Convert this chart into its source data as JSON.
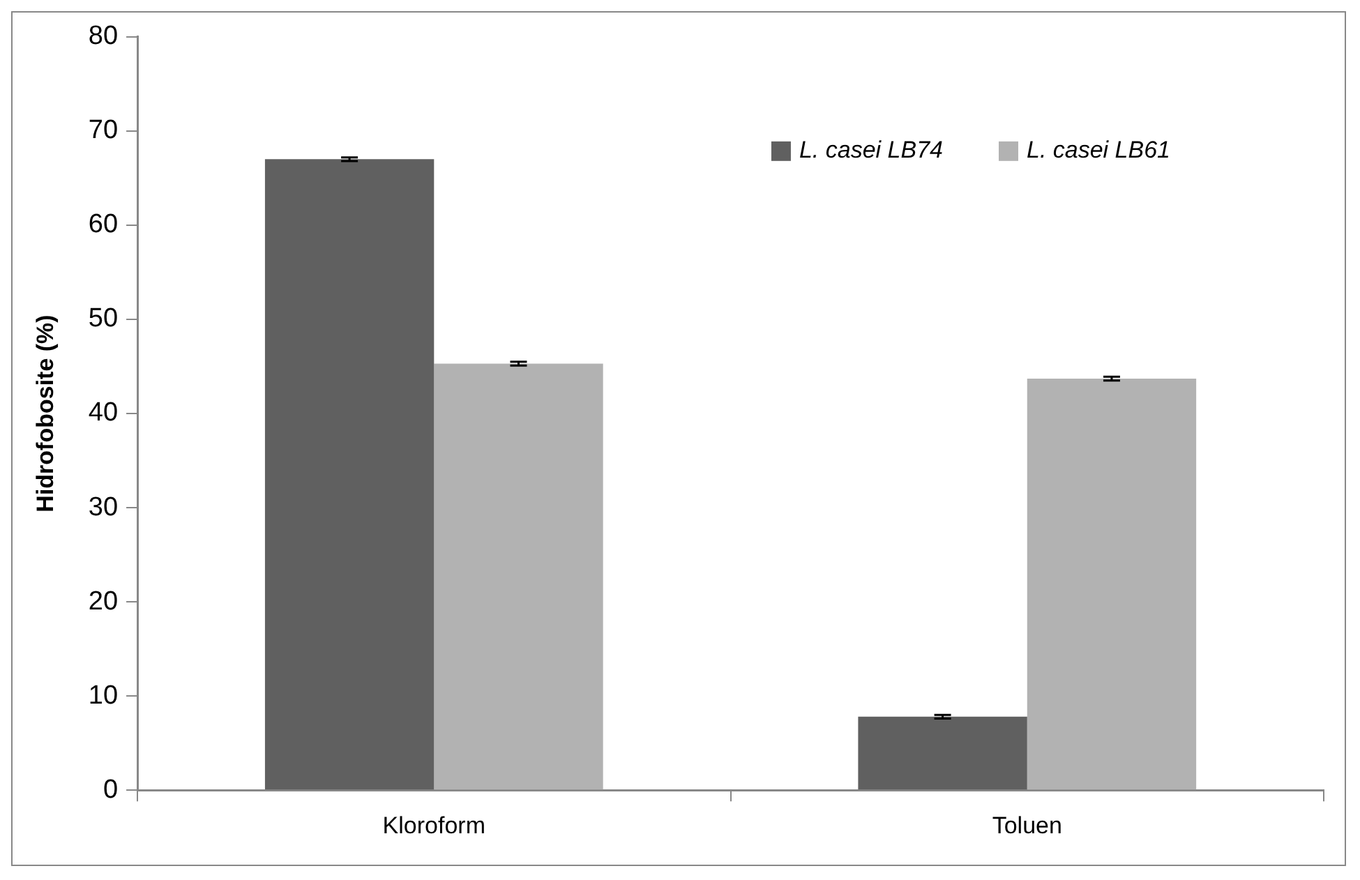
{
  "chart_data": {
    "type": "bar",
    "ylabel": "Hidrofobosite (%)",
    "categories": [
      "Kloroform",
      "Toluen"
    ],
    "series": [
      {
        "name": "L. casei LB74",
        "color": "#606060",
        "values": [
          67.0,
          7.8
        ],
        "errors": [
          0.2,
          0.2
        ]
      },
      {
        "name": "L. casei LB61",
        "color": "#b2b2b2",
        "values": [
          45.3,
          43.7
        ],
        "errors": [
          0.2,
          0.2
        ]
      }
    ],
    "ylim": [
      0,
      80
    ],
    "yticks": [
      0,
      10,
      20,
      30,
      40,
      50,
      60,
      70,
      80
    ],
    "grid": false,
    "legend": "top right"
  }
}
